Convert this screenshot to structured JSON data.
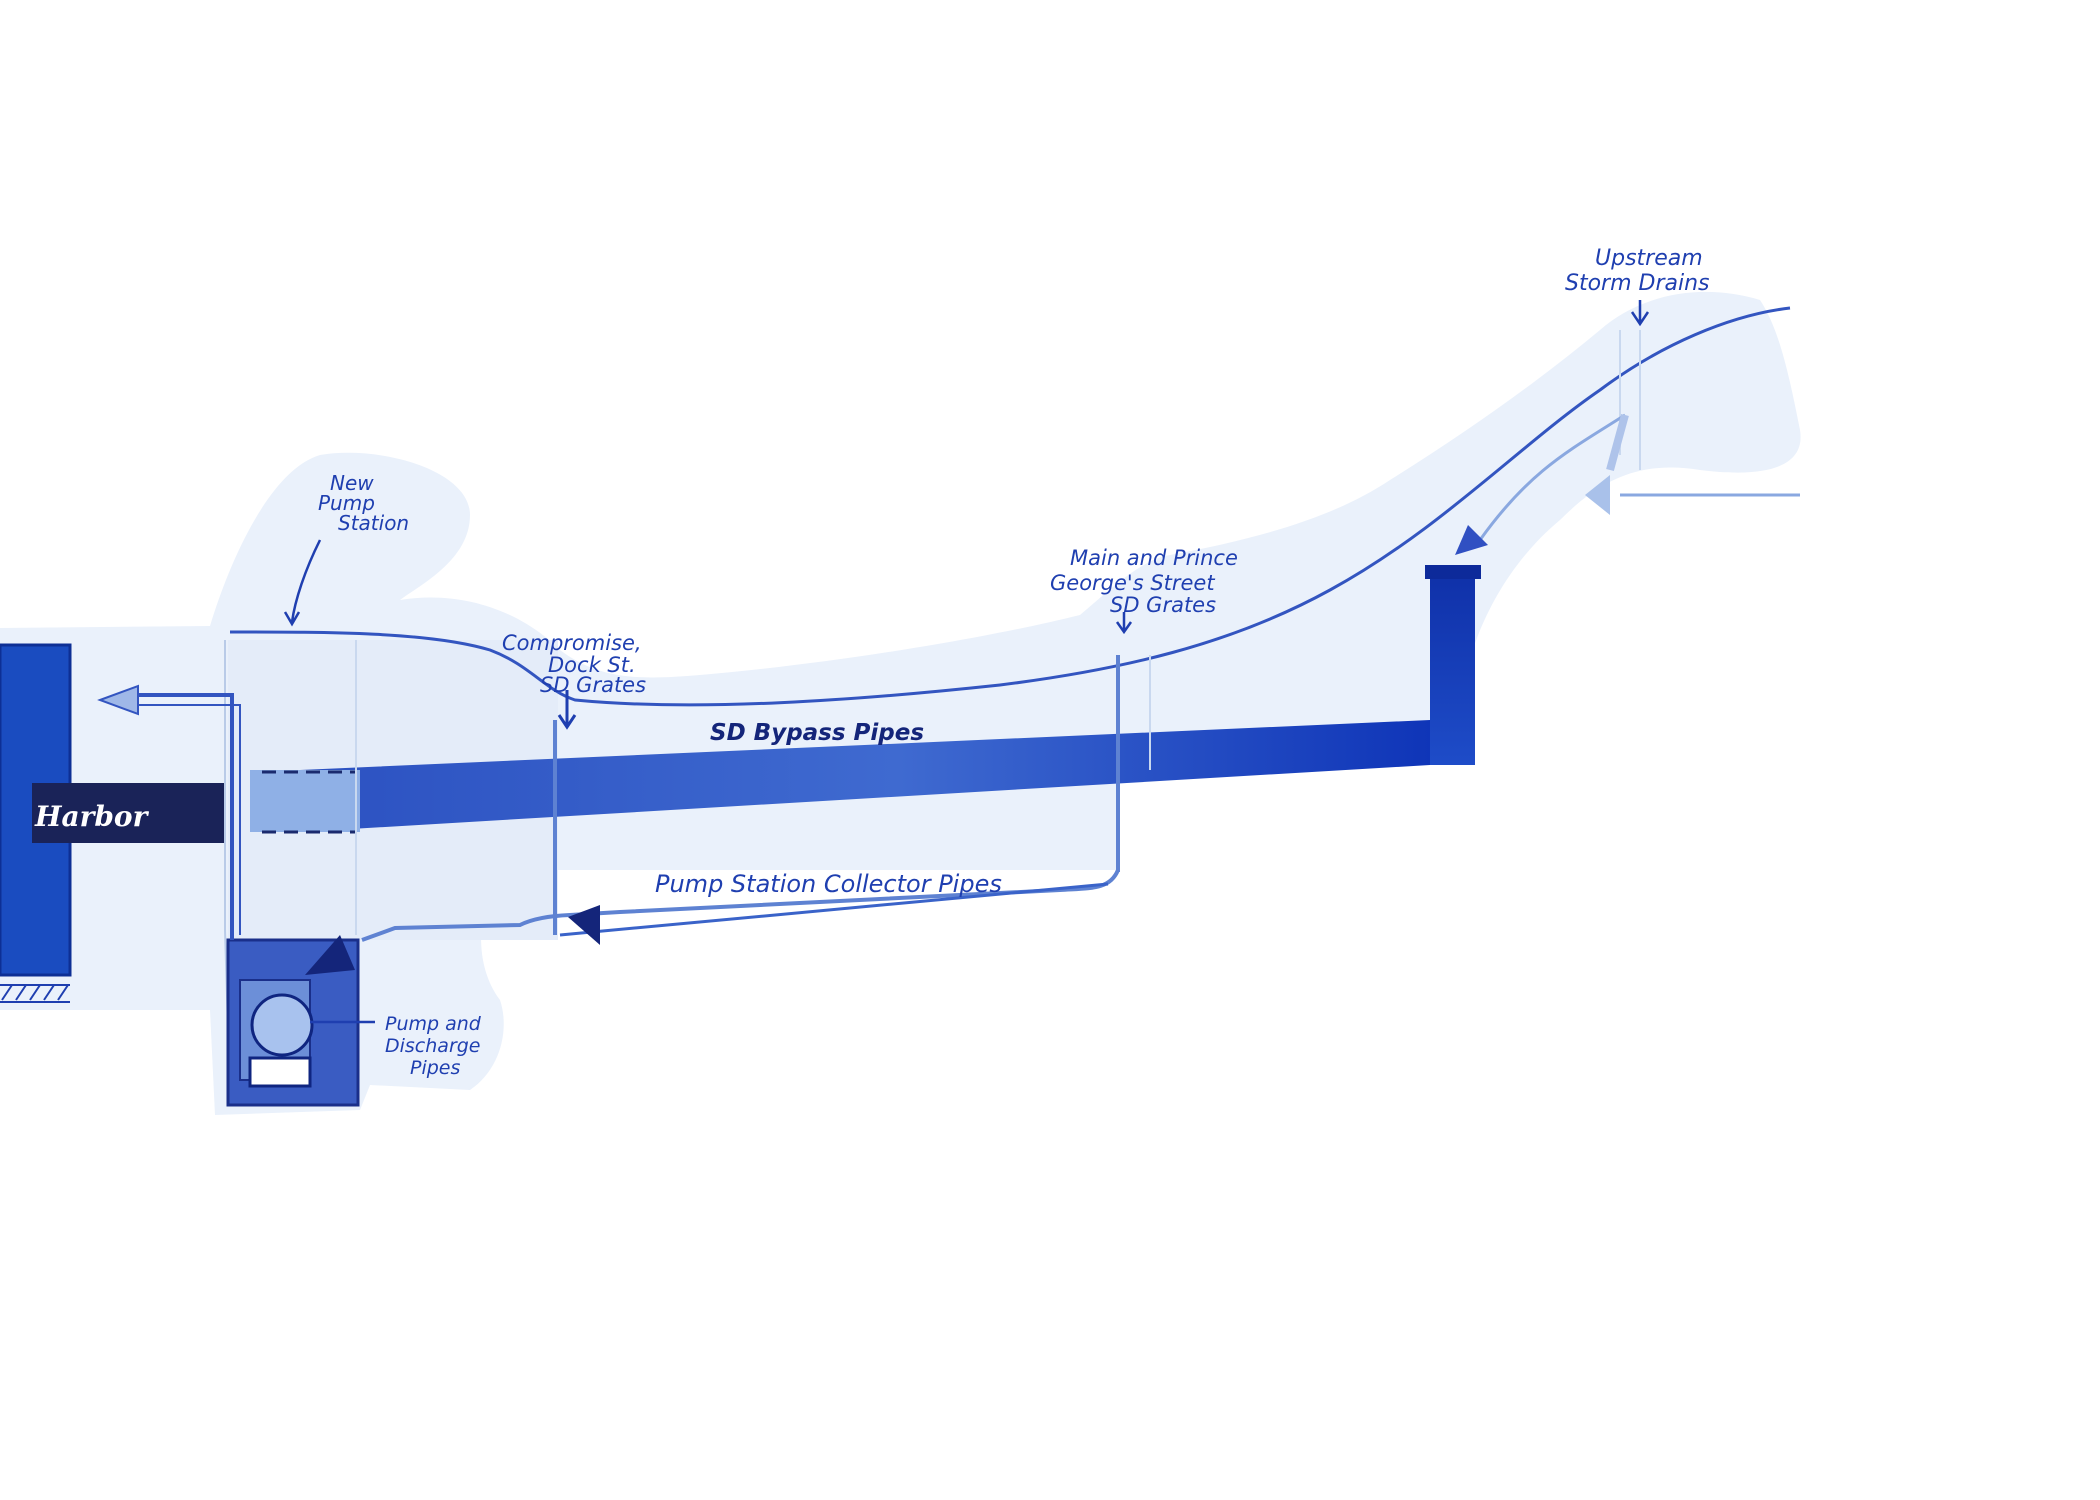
{
  "labels": {
    "harbor": "Harbor",
    "new_pump_station": [
      "New",
      "Pump",
      "Station"
    ],
    "compromise_grates": [
      "Compromise,",
      "Dock St.",
      "SD Grates"
    ],
    "main_prince_grates": [
      "Main and Prince",
      "George's Street",
      "SD Grates"
    ],
    "upstream_drains": [
      "Upstream",
      "Storm Drains"
    ],
    "bypass_pipes": "SD Bypass Pipes",
    "collector_pipes": "Pump Station Collector Pipes",
    "pump_discharge": [
      "Pump and",
      "Discharge",
      "Pipes"
    ]
  },
  "colors": {
    "ink": "#1f3fb0",
    "deep_blue": "#123bb8",
    "mid_blue": "#3a63c9",
    "wash": "#e9f0fb",
    "wash_dark": "#d6e3f6",
    "harbor_pipe": "#1a2358"
  }
}
